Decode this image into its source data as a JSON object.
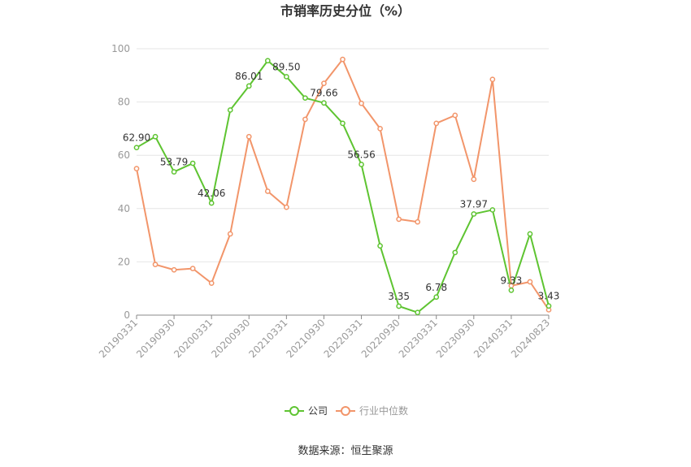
{
  "chart_data": {
    "type": "line",
    "title": "市销率历史分位（%）",
    "xlabel": "",
    "ylabel": "",
    "ylim": [
      0,
      100
    ],
    "yticks": [
      0,
      20,
      40,
      60,
      80,
      100
    ],
    "grid": true,
    "legend_position": "bottom-center",
    "categories": [
      "20190331",
      "20190630",
      "20190930",
      "20191231",
      "20200331",
      "20200630",
      "20200930",
      "20201231",
      "20210331",
      "20210630",
      "20210930",
      "20211231",
      "20220331",
      "20220630",
      "20220930",
      "20221231",
      "20230331",
      "20230630",
      "20230930",
      "20231231",
      "20240331",
      "20240630",
      "20240823"
    ],
    "tick_labels": [
      "20190331",
      "20190930",
      "20200331",
      "20200930",
      "20210331",
      "20210930",
      "20220331",
      "20220930",
      "20230331",
      "20230930",
      "20240331",
      "20240823"
    ],
    "series": [
      {
        "name": "公司",
        "color": "#5ec431",
        "values": [
          62.9,
          67.0,
          53.79,
          57.0,
          42.06,
          77.0,
          86.01,
          95.5,
          89.5,
          81.5,
          79.66,
          72.0,
          56.56,
          26.0,
          3.35,
          1.0,
          6.78,
          23.5,
          37.97,
          39.5,
          9.33,
          30.5,
          3.43
        ]
      },
      {
        "name": "行业中位数",
        "color": "#f2956a",
        "values": [
          55.0,
          19.0,
          17.0,
          17.5,
          12.0,
          30.5,
          67.0,
          46.5,
          40.5,
          73.5,
          87.0,
          96.0,
          79.5,
          70.0,
          36.0,
          35.0,
          72.0,
          75.0,
          51.0,
          88.5,
          11.0,
          12.5,
          2.0
        ]
      }
    ],
    "data_labels": [
      {
        "series": 0,
        "index": 0,
        "text": "62.90"
      },
      {
        "series": 0,
        "index": 2,
        "text": "53.79"
      },
      {
        "series": 0,
        "index": 4,
        "text": "42.06"
      },
      {
        "series": 0,
        "index": 6,
        "text": "86.01"
      },
      {
        "series": 0,
        "index": 8,
        "text": "89.50"
      },
      {
        "series": 0,
        "index": 10,
        "text": "79.66"
      },
      {
        "series": 0,
        "index": 12,
        "text": "56.56"
      },
      {
        "series": 0,
        "index": 14,
        "text": "3.35"
      },
      {
        "series": 0,
        "index": 16,
        "text": "6.78"
      },
      {
        "series": 0,
        "index": 18,
        "text": "37.97"
      },
      {
        "series": 0,
        "index": 20,
        "text": "9.33"
      },
      {
        "series": 0,
        "index": 22,
        "text": "3.43"
      }
    ]
  },
  "source_text": "数据来源：恒生聚源"
}
